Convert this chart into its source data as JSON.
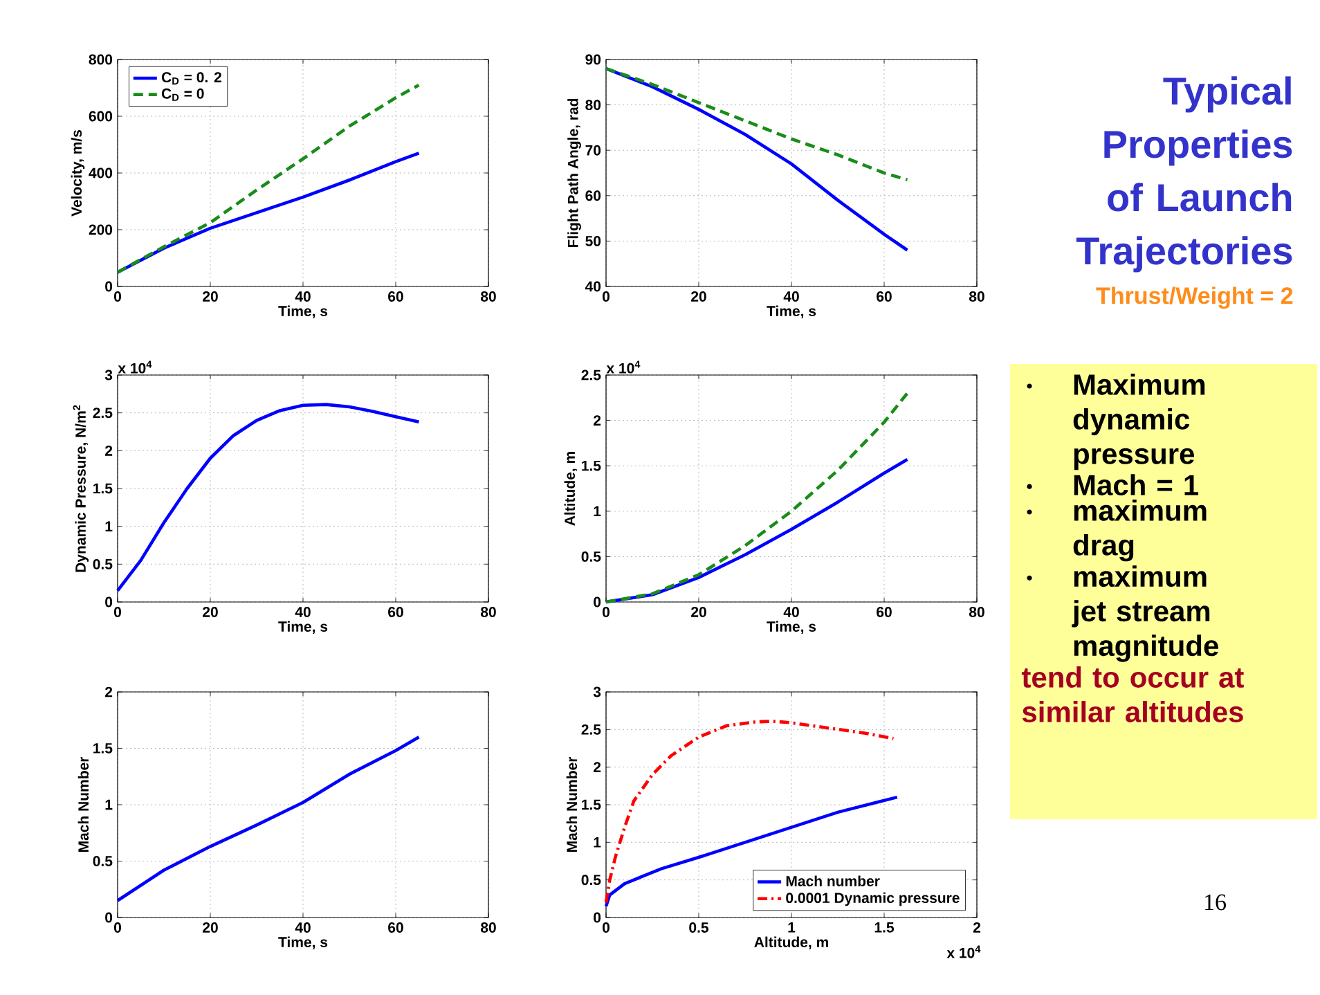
{
  "chart_data": [
    {
      "type": "line",
      "xlabel": "Time, s",
      "ylabel": "Velocity, m/s",
      "x": [
        0,
        10,
        20,
        30,
        40,
        50,
        60,
        65
      ],
      "xlim": [
        0,
        80
      ],
      "xticks": [
        0,
        20,
        40,
        60,
        80
      ],
      "ylim": [
        0,
        800
      ],
      "yticks": [
        0,
        200,
        400,
        600,
        800
      ],
      "grid": true,
      "legend": "top left",
      "series": [
        {
          "name": "C$_{D}$ = 0. 2",
          "color": "#0000ff",
          "line_style": "solid",
          "values": [
            50,
            135,
            205,
            260,
            315,
            375,
            440,
            470
          ]
        },
        {
          "name": "C$_{D}$ =  0",
          "color": "#1a8c1a",
          "line_style": "dashed",
          "values": [
            50,
            140,
            225,
            340,
            450,
            565,
            665,
            710
          ]
        }
      ]
    },
    {
      "type": "line",
      "xlabel": "Time, s",
      "ylabel": "Flight Path Angle, rad",
      "x": [
        0,
        10,
        20,
        30,
        40,
        50,
        60,
        65
      ],
      "xlim": [
        0,
        80
      ],
      "xticks": [
        0,
        20,
        40,
        60,
        80
      ],
      "ylim": [
        40,
        90
      ],
      "yticks": [
        40,
        50,
        60,
        70,
        80,
        90
      ],
      "grid": true,
      "series": [
        {
          "color": "#0000ff",
          "line_style": "solid",
          "values": [
            88,
            84,
            79,
            73.5,
            67,
            59,
            51.5,
            48
          ]
        },
        {
          "color": "#1a8c1a",
          "line_style": "dashed",
          "values": [
            88,
            84.5,
            80.5,
            76.5,
            72.5,
            69,
            65,
            63.5
          ]
        }
      ]
    },
    {
      "type": "line",
      "xlabel": "Time, s",
      "ylabel": "Dynamic Pressure, N/m$^{2}$",
      "annotations": [
        "x 10$^{4}$"
      ],
      "x": [
        0,
        5,
        10,
        15,
        20,
        25,
        30,
        35,
        40,
        45,
        50,
        55,
        60,
        65
      ],
      "xlim": [
        0,
        80
      ],
      "xticks": [
        0,
        20,
        40,
        60,
        80
      ],
      "ylim": [
        0,
        3
      ],
      "yticks": [
        0,
        0.5,
        1,
        1.5,
        2,
        2.5,
        3
      ],
      "grid": true,
      "series": [
        {
          "color": "#0000ff",
          "line_style": "solid",
          "values": [
            0.15,
            0.55,
            1.05,
            1.5,
            1.9,
            2.2,
            2.4,
            2.53,
            2.6,
            2.61,
            2.58,
            2.52,
            2.45,
            2.38
          ]
        }
      ]
    },
    {
      "type": "line",
      "xlabel": "Time, s",
      "ylabel": "Altitude, m",
      "annotations": [
        "x 10$^{4}$"
      ],
      "x": [
        0,
        10,
        20,
        30,
        40,
        50,
        60,
        65
      ],
      "xlim": [
        0,
        80
      ],
      "xticks": [
        0,
        20,
        40,
        60,
        80
      ],
      "ylim": [
        0,
        2.5
      ],
      "yticks": [
        0,
        0.5,
        1,
        1.5,
        2,
        2.5
      ],
      "grid": true,
      "series": [
        {
          "color": "#0000ff",
          "line_style": "solid",
          "values": [
            0,
            0.08,
            0.27,
            0.52,
            0.8,
            1.1,
            1.42,
            1.57
          ]
        },
        {
          "color": "#1a8c1a",
          "line_style": "dashed",
          "values": [
            0,
            0.09,
            0.3,
            0.62,
            1.0,
            1.45,
            1.98,
            2.3
          ]
        }
      ]
    },
    {
      "type": "line",
      "xlabel": "Time, s",
      "ylabel": "Mach Number",
      "x": [
        0,
        10,
        20,
        30,
        40,
        50,
        60,
        65
      ],
      "xlim": [
        0,
        80
      ],
      "xticks": [
        0,
        20,
        40,
        60,
        80
      ],
      "ylim": [
        0,
        2
      ],
      "yticks": [
        0,
        0.5,
        1,
        1.5,
        2
      ],
      "grid": true,
      "series": [
        {
          "color": "#0000ff",
          "line_style": "solid",
          "values": [
            0.15,
            0.42,
            0.63,
            0.82,
            1.02,
            1.27,
            1.48,
            1.6
          ]
        }
      ]
    },
    {
      "type": "line",
      "xlabel": "Altitude, m",
      "ylabel": "Mach Number",
      "annotations": [
        "x 10$^{4}$"
      ],
      "xlim": [
        0,
        2
      ],
      "xticks": [
        0,
        0.5,
        1,
        1.5,
        2
      ],
      "ylim": [
        0,
        3
      ],
      "yticks": [
        0,
        0.5,
        1,
        1.5,
        2,
        2.5,
        3
      ],
      "grid": true,
      "legend": "bottom right",
      "series": [
        {
          "name": "Mach number",
          "color": "#0000ff",
          "line_style": "solid",
          "x": [
            0,
            0.02,
            0.1,
            0.2,
            0.3,
            0.5,
            0.75,
            1.0,
            1.25,
            1.57
          ],
          "values": [
            0.15,
            0.3,
            0.45,
            0.55,
            0.65,
            0.8,
            1.0,
            1.2,
            1.4,
            1.6
          ]
        },
        {
          "name": "0.0001 Dynamic pressure",
          "color": "#ff0000",
          "line_style": "dashdot",
          "x": [
            0,
            0.02,
            0.05,
            0.1,
            0.15,
            0.25,
            0.35,
            0.5,
            0.65,
            0.8,
            0.9,
            1.0,
            1.2,
            1.4,
            1.55
          ],
          "values": [
            0.2,
            0.5,
            0.8,
            1.2,
            1.55,
            1.9,
            2.15,
            2.4,
            2.55,
            2.6,
            2.61,
            2.59,
            2.52,
            2.45,
            2.38
          ]
        }
      ]
    },
    {
      "type": "other",
      "title": "Typical Properties of Launch Trajectories",
      "subtitle": "Thrust/Weight = 2",
      "annotations": [
        "Maximum dynamic pressure",
        "Mach = 1",
        "maximum drag",
        "maximum jet stream magnitude",
        "tend to occur at similar altitudes",
        "16"
      ]
    }
  ]
}
